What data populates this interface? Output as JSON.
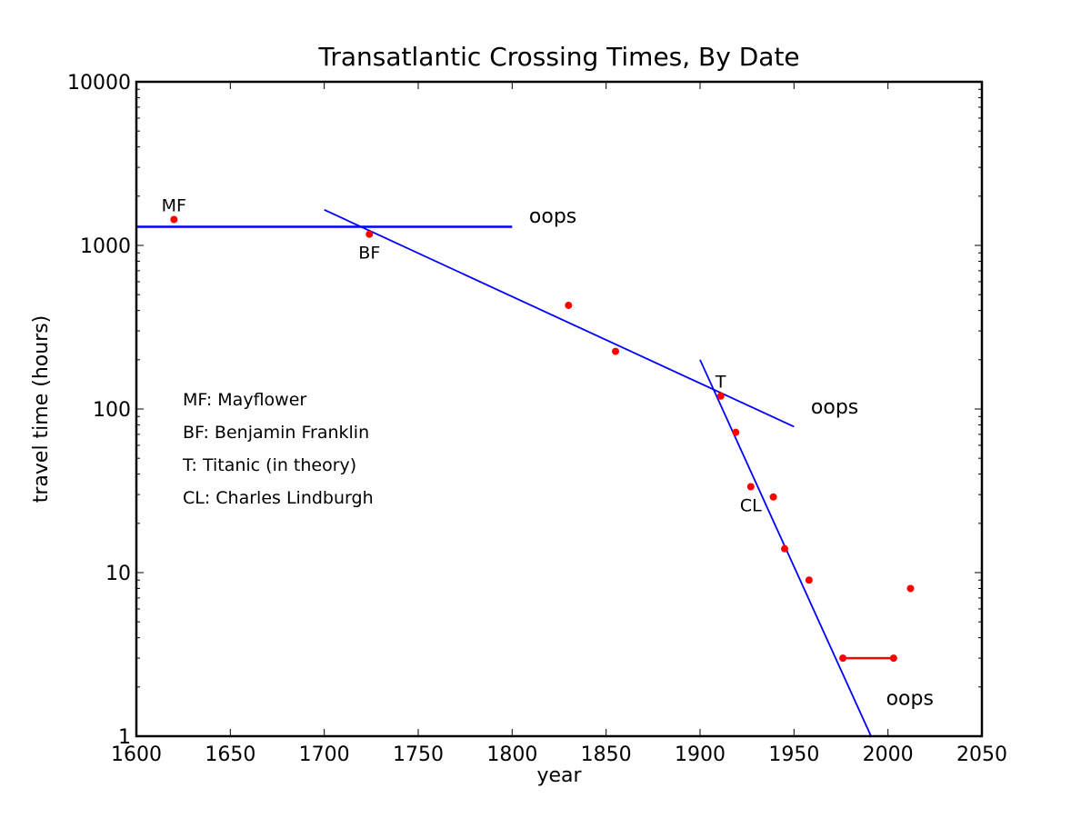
{
  "chart_data": {
    "type": "scatter",
    "title": "Transatlantic Crossing Times, By Date",
    "xlabel": "year",
    "ylabel": "travel time (hours)",
    "xlim": [
      1600,
      2050
    ],
    "ylim": [
      1,
      10000
    ],
    "yscale": "log",
    "grid": false,
    "x_ticks": [
      1600,
      1650,
      1700,
      1750,
      1800,
      1850,
      1900,
      1950,
      2000,
      2050
    ],
    "x_tick_labels": [
      "1600",
      "1650",
      "1700",
      "1750",
      "1800",
      "1850",
      "1900",
      "1950",
      "2000",
      "2050"
    ],
    "y_ticks": [
      1,
      10,
      100,
      1000,
      10000
    ],
    "y_tick_labels": [
      "1",
      "10",
      "100",
      "1000",
      "10000"
    ],
    "points": {
      "color": "#ff0000",
      "x": [
        1620,
        1724,
        1830,
        1855,
        1911,
        1919,
        1927,
        1939,
        1945,
        1958,
        1976,
        2003,
        2012
      ],
      "y": [
        1440,
        1170,
        430,
        225,
        120,
        72,
        33.5,
        29,
        14,
        9,
        3,
        3,
        8
      ]
    },
    "red_segment": {
      "color": "#ff0000",
      "x": [
        1976,
        2003
      ],
      "y": [
        3,
        3
      ]
    },
    "fit_lines": {
      "color": "#0000ff",
      "lines": [
        {
          "x": [
            1600,
            1800
          ],
          "y": [
            1300,
            1300
          ]
        },
        {
          "x": [
            1700,
            1950
          ],
          "y": [
            1650,
            78
          ]
        },
        {
          "x": [
            1900,
            1991
          ],
          "y": [
            200,
            1
          ]
        }
      ]
    },
    "point_labels": [
      {
        "text": "MF",
        "x": 1620,
        "y": 1440,
        "position": "above"
      },
      {
        "text": "BF",
        "x": 1724,
        "y": 1170,
        "position": "below"
      },
      {
        "text": "T",
        "x": 1911,
        "y": 120,
        "position": "above"
      },
      {
        "text": "CL",
        "x": 1927,
        "y": 33.5,
        "position": "below"
      }
    ],
    "oops_annotations": [
      {
        "text": "oops",
        "x": 1809,
        "y": 1380
      },
      {
        "text": "oops",
        "x": 1959,
        "y": 94
      },
      {
        "text": "oops",
        "x": 1999,
        "y": 1.55
      }
    ],
    "legend_text": [
      "MF: Mayflower",
      "BF: Benjamin Franklin",
      "T: Titanic (in theory)",
      "CL: Charles Lindburgh"
    ]
  }
}
